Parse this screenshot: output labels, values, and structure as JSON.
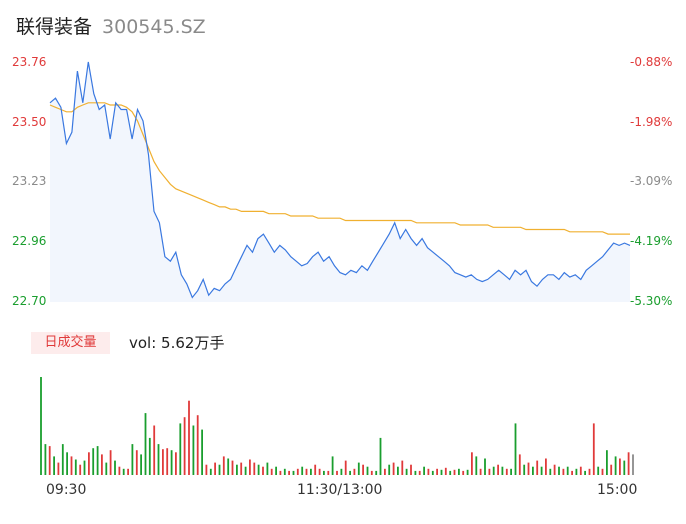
{
  "header": {
    "name": "联得装备",
    "code": "300545.SZ"
  },
  "volume": {
    "tag": "日成交量",
    "label": "vol: 5.62万手"
  },
  "colors": {
    "up": "#e03a3a",
    "down": "#1a9e2e",
    "price_line": "#3a78e0",
    "avg_line": "#f0b030",
    "neutral": "#8a8a8a"
  },
  "chart_data": [
    {
      "type": "line",
      "title": "",
      "x_ticks": [
        "09:30",
        "11:30/13:00",
        "15:00"
      ],
      "ylim": [
        22.7,
        23.76
      ],
      "y_ticks_left": [
        "23.76",
        "23.50",
        "23.23",
        "22.96",
        "22.70"
      ],
      "y_ticks_right": [
        "-0.88%",
        "-1.98%",
        "-3.09%",
        "-4.19%",
        "-5.30%"
      ],
      "series": [
        {
          "key": "price",
          "values": [
            23.58,
            23.6,
            23.56,
            23.4,
            23.45,
            23.72,
            23.58,
            23.76,
            23.62,
            23.55,
            23.57,
            23.42,
            23.58,
            23.55,
            23.55,
            23.42,
            23.55,
            23.5,
            23.35,
            23.1,
            23.05,
            22.9,
            22.88,
            22.92,
            22.82,
            22.78,
            22.72,
            22.75,
            22.8,
            22.73,
            22.76,
            22.75,
            22.78,
            22.8,
            22.85,
            22.9,
            22.95,
            22.92,
            22.98,
            23.0,
            22.96,
            22.92,
            22.95,
            22.93,
            22.9,
            22.88,
            22.86,
            22.87,
            22.9,
            22.92,
            22.88,
            22.9,
            22.86,
            22.83,
            22.82,
            22.84,
            22.83,
            22.86,
            22.84,
            22.88,
            22.92,
            22.96,
            23.0,
            23.05,
            22.98,
            23.02,
            22.98,
            22.95,
            22.98,
            22.94,
            22.92,
            22.9,
            22.88,
            22.86,
            22.83,
            22.82,
            22.81,
            22.82,
            22.8,
            22.79,
            22.8,
            22.82,
            22.84,
            22.82,
            22.8,
            22.84,
            22.82,
            22.84,
            22.79,
            22.77,
            22.8,
            22.82,
            22.82,
            22.8,
            22.83,
            22.81,
            22.82,
            22.8,
            22.84,
            22.86,
            22.88,
            22.9,
            22.93,
            22.96,
            22.95,
            22.96,
            22.95
          ],
          "color_key": "price_line"
        },
        {
          "key": "average",
          "values": [
            23.57,
            23.56,
            23.55,
            23.54,
            23.54,
            23.56,
            23.57,
            23.58,
            23.58,
            23.58,
            23.58,
            23.57,
            23.57,
            23.57,
            23.56,
            23.54,
            23.5,
            23.44,
            23.38,
            23.32,
            23.28,
            23.25,
            23.22,
            23.2,
            23.19,
            23.18,
            23.17,
            23.16,
            23.15,
            23.14,
            23.13,
            23.12,
            23.12,
            23.11,
            23.11,
            23.1,
            23.1,
            23.1,
            23.1,
            23.1,
            23.09,
            23.09,
            23.09,
            23.09,
            23.08,
            23.08,
            23.08,
            23.08,
            23.08,
            23.07,
            23.07,
            23.07,
            23.07,
            23.07,
            23.06,
            23.06,
            23.06,
            23.06,
            23.06,
            23.06,
            23.06,
            23.06,
            23.06,
            23.06,
            23.06,
            23.06,
            23.06,
            23.05,
            23.05,
            23.05,
            23.05,
            23.05,
            23.05,
            23.05,
            23.05,
            23.04,
            23.04,
            23.04,
            23.04,
            23.04,
            23.04,
            23.03,
            23.03,
            23.03,
            23.03,
            23.03,
            23.03,
            23.02,
            23.02,
            23.02,
            23.02,
            23.02,
            23.02,
            23.02,
            23.02,
            23.01,
            23.01,
            23.01,
            23.01,
            23.01,
            23.01,
            23.01,
            23.0,
            23.0,
            23.0,
            23.0,
            23.0
          ],
          "color_key": "avg_line"
        }
      ]
    },
    {
      "type": "bar",
      "title": "",
      "values": [
        95,
        30,
        28,
        18,
        12,
        30,
        22,
        18,
        15,
        10,
        14,
        22,
        26,
        28,
        20,
        12,
        24,
        14,
        8,
        6,
        6,
        30,
        24,
        20,
        60,
        36,
        48,
        30,
        25,
        26,
        24,
        22,
        50,
        56,
        72,
        48,
        58,
        44,
        10,
        6,
        12,
        10,
        18,
        16,
        14,
        10,
        12,
        8,
        15,
        12,
        10,
        8,
        12,
        6,
        8,
        4,
        6,
        4,
        4,
        6,
        8,
        6,
        6,
        10,
        6,
        4,
        4,
        18,
        4,
        6,
        14,
        4,
        6,
        12,
        10,
        8,
        4,
        4,
        36,
        6,
        10,
        12,
        8,
        14,
        6,
        10,
        4,
        4,
        8,
        6,
        4,
        6,
        5,
        7,
        4,
        5,
        6,
        4,
        5,
        22,
        18,
        6,
        16,
        6,
        8,
        10,
        8,
        6,
        6,
        50,
        20,
        10,
        12,
        8,
        14,
        8,
        16,
        6,
        10,
        8,
        6,
        8,
        4,
        6,
        8,
        4,
        6,
        50,
        8,
        6,
        24,
        10,
        18,
        16,
        14,
        22,
        20
      ],
      "colors": [
        "down",
        "down",
        "up",
        "down",
        "up",
        "down",
        "down",
        "up",
        "down",
        "up",
        "down",
        "up",
        "down",
        "down",
        "up",
        "down",
        "up",
        "down",
        "up",
        "down",
        "up",
        "down",
        "up",
        "down",
        "down",
        "down",
        "up",
        "down",
        "up",
        "up",
        "down",
        "up",
        "down",
        "up",
        "up",
        "down",
        "up",
        "down",
        "up",
        "down",
        "up",
        "down",
        "up",
        "down",
        "up",
        "down",
        "up",
        "down",
        "up",
        "up",
        "down",
        "up",
        "down",
        "up",
        "down",
        "up",
        "down",
        "up",
        "down",
        "up",
        "down",
        "up",
        "down",
        "up",
        "up",
        "down",
        "up",
        "down",
        "up",
        "down",
        "up",
        "down",
        "up",
        "down",
        "up",
        "down",
        "up",
        "down",
        "down",
        "up",
        "down",
        "up",
        "down",
        "up",
        "down",
        "up",
        "down",
        "up",
        "down",
        "up",
        "down",
        "up",
        "down",
        "up",
        "down",
        "up",
        "down",
        "up",
        "down",
        "up",
        "down",
        "up",
        "down",
        "up",
        "down",
        "up",
        "down",
        "up",
        "down",
        "down",
        "up",
        "down",
        "up",
        "down",
        "up",
        "down",
        "up",
        "down",
        "up",
        "down",
        "up",
        "down",
        "up",
        "down",
        "up",
        "down",
        "up",
        "up",
        "down",
        "up",
        "down",
        "up",
        "down",
        "up",
        "down",
        "up",
        "neutral"
      ]
    }
  ]
}
